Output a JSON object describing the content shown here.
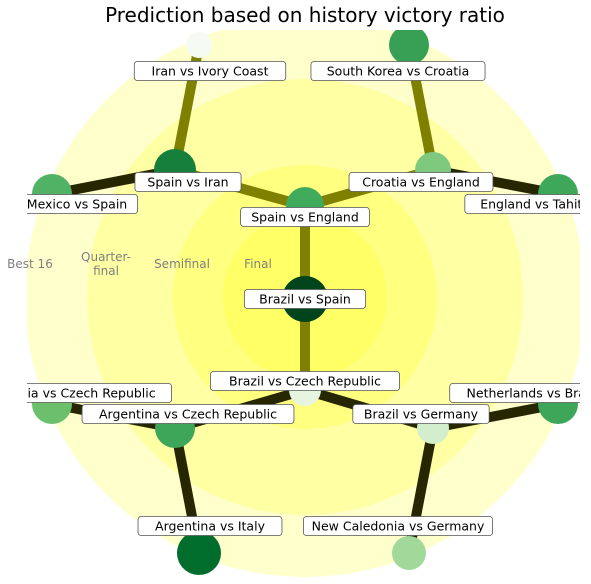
{
  "chart_data": {
    "type": "tournament_bracket",
    "title": "Prediction based on history victory ratio",
    "rounds": [
      "Best 16",
      "Quarter-final",
      "Semifinal",
      "Final"
    ],
    "colors": {
      "ring_outer": "#ffffcc",
      "ring_mid": "#ffffa3",
      "ring_inner": "#ffff80",
      "ring_center": "#ffff66",
      "edge_light": "#7f7f00",
      "edge_dark": "#262600"
    },
    "matches": [
      {
        "id": "m_final",
        "label": "Brazil vs Spain",
        "round": "Final",
        "color": "#00441b"
      },
      {
        "id": "m_sf1",
        "label": "Spain vs England",
        "round": "Semifinal",
        "color": "#41ab5d"
      },
      {
        "id": "m_sf2",
        "label": "Brazil vs Czech Republic",
        "round": "Semifinal",
        "color": "#e5f5e0"
      },
      {
        "id": "m_qf1",
        "label": "Spain vs Iran",
        "round": "Quarter-final",
        "color": "#157f3b"
      },
      {
        "id": "m_qf2",
        "label": "Croatia vs England",
        "round": "Quarter-final",
        "color": "#7fc97f"
      },
      {
        "id": "m_qf3",
        "label": "Argentina vs Czech Republic",
        "round": "Quarter-final",
        "color": "#3ea659"
      },
      {
        "id": "m_qf4",
        "label": "Brazil vs Germany",
        "round": "Quarter-final",
        "color": "#d3eecd"
      },
      {
        "id": "m_r16_1",
        "label": "Iran vs Ivory Coast",
        "round": "Best 16",
        "color": "#f5fbf2"
      },
      {
        "id": "m_r16_2",
        "label": "South Korea vs Croatia",
        "round": "Best 16",
        "color": "#38a055"
      },
      {
        "id": "m_r16_3",
        "label": "Mexico vs Spain",
        "round": "Best 16",
        "color": "#4fb264"
      },
      {
        "id": "m_r16_4",
        "label": "England vs Tahiti",
        "round": "Best 16",
        "color": "#3da75a"
      },
      {
        "id": "m_r16_5",
        "label": "Russia vs Czech Republic",
        "round": "Best 16",
        "color": "#6cbf6b"
      },
      {
        "id": "m_r16_6",
        "label": "Netherlands vs Brazil",
        "round": "Best 16",
        "color": "#3ea659"
      },
      {
        "id": "m_r16_7",
        "label": "Argentina vs Italy",
        "round": "Best 16",
        "color": "#006d2c"
      },
      {
        "id": "m_r16_8",
        "label": "New Caledonia vs Germany",
        "round": "Best 16",
        "color": "#a1d99b"
      }
    ],
    "edges": [
      {
        "from": "m_final",
        "to": "m_sf1",
        "tone": "light"
      },
      {
        "from": "m_final",
        "to": "m_sf2",
        "tone": "light"
      },
      {
        "from": "m_sf1",
        "to": "m_qf1",
        "tone": "light"
      },
      {
        "from": "m_sf1",
        "to": "m_qf2",
        "tone": "light"
      },
      {
        "from": "m_sf2",
        "to": "m_qf3",
        "tone": "dark"
      },
      {
        "from": "m_sf2",
        "to": "m_qf4",
        "tone": "dark"
      },
      {
        "from": "m_qf1",
        "to": "m_r16_1",
        "tone": "light"
      },
      {
        "from": "m_qf1",
        "to": "m_r16_3",
        "tone": "dark"
      },
      {
        "from": "m_qf2",
        "to": "m_r16_2",
        "tone": "light"
      },
      {
        "from": "m_qf2",
        "to": "m_r16_4",
        "tone": "dark"
      },
      {
        "from": "m_qf3",
        "to": "m_r16_5",
        "tone": "dark"
      },
      {
        "from": "m_qf3",
        "to": "m_r16_7",
        "tone": "dark"
      },
      {
        "from": "m_qf4",
        "to": "m_r16_6",
        "tone": "dark"
      },
      {
        "from": "m_qf4",
        "to": "m_r16_8",
        "tone": "dark"
      }
    ]
  }
}
